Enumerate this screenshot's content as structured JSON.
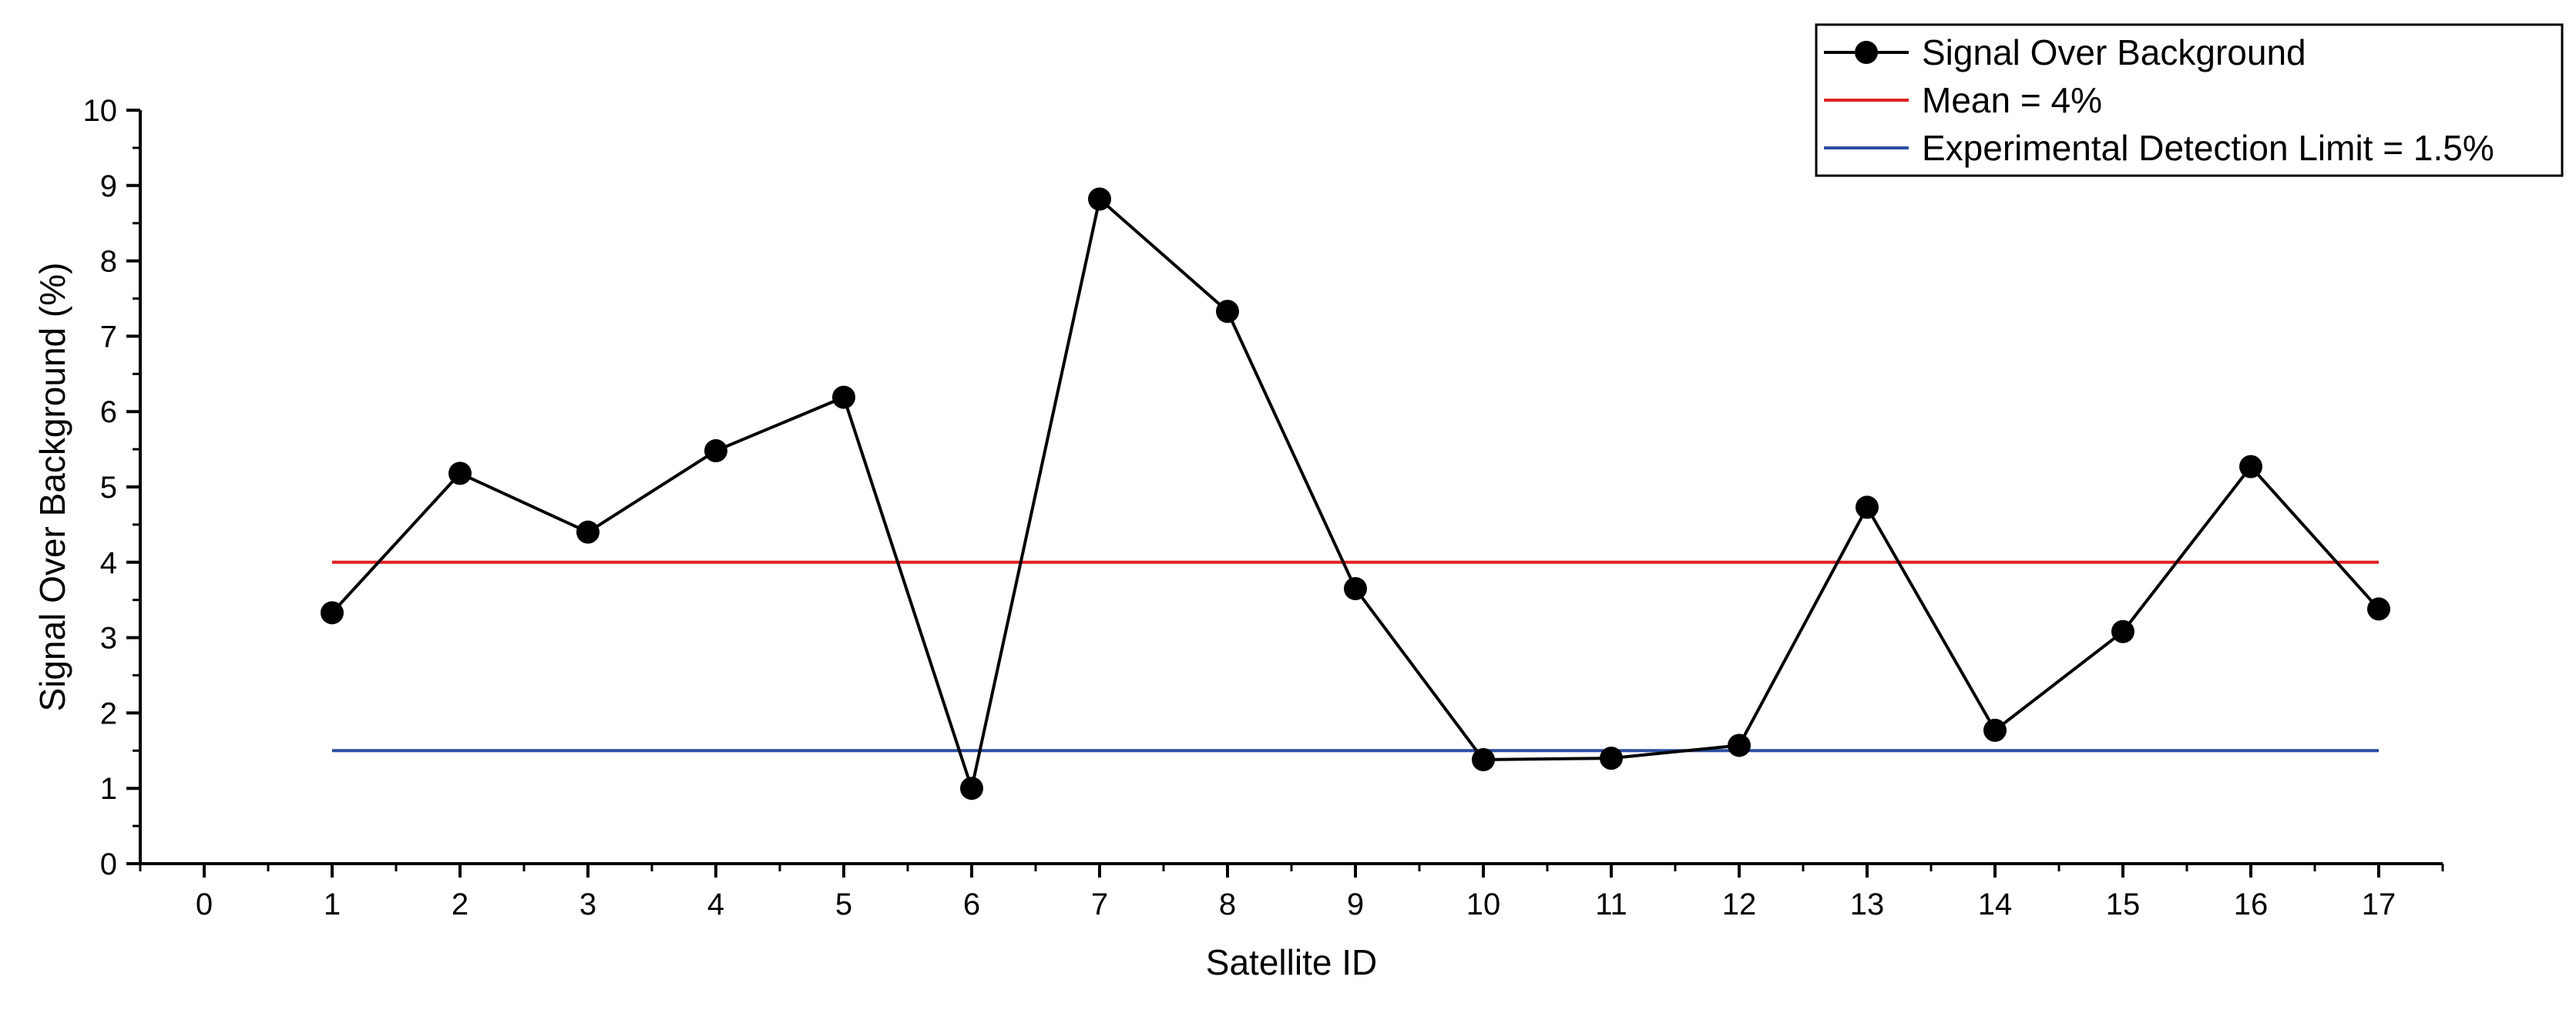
{
  "chart_data": {
    "type": "line",
    "xlabel": "Satellite ID",
    "ylabel": "Signal Over Background (%)",
    "xlim": [
      -0.5,
      17.5
    ],
    "ylim": [
      0,
      10
    ],
    "xticks": [
      0,
      1,
      2,
      3,
      4,
      5,
      6,
      7,
      8,
      9,
      10,
      11,
      12,
      13,
      14,
      15,
      16,
      17
    ],
    "yticks": [
      0,
      1,
      2,
      3,
      4,
      5,
      6,
      7,
      8,
      9,
      10
    ],
    "grid": false,
    "legend_position": "top-right",
    "series": [
      {
        "name": "Signal Over Background",
        "color": "#000000",
        "marker": "circle",
        "x": [
          1,
          2,
          3,
          4,
          5,
          6,
          7,
          8,
          9,
          10,
          11,
          12,
          13,
          14,
          15,
          16,
          17
        ],
        "y": [
          3.33,
          5.18,
          4.4,
          5.48,
          6.19,
          1.0,
          8.82,
          7.33,
          3.65,
          1.38,
          1.4,
          1.57,
          4.73,
          1.77,
          3.08,
          5.27,
          3.38
        ]
      }
    ],
    "reference_lines": [
      {
        "name": "Mean = 4%",
        "y": 4,
        "x_range": [
          1,
          17
        ],
        "color": "#e02020"
      },
      {
        "name": "Experimental Detection Limit = 1.5%",
        "y": 1.5,
        "x_range": [
          1,
          17
        ],
        "color": "#2b4ea0"
      }
    ]
  }
}
